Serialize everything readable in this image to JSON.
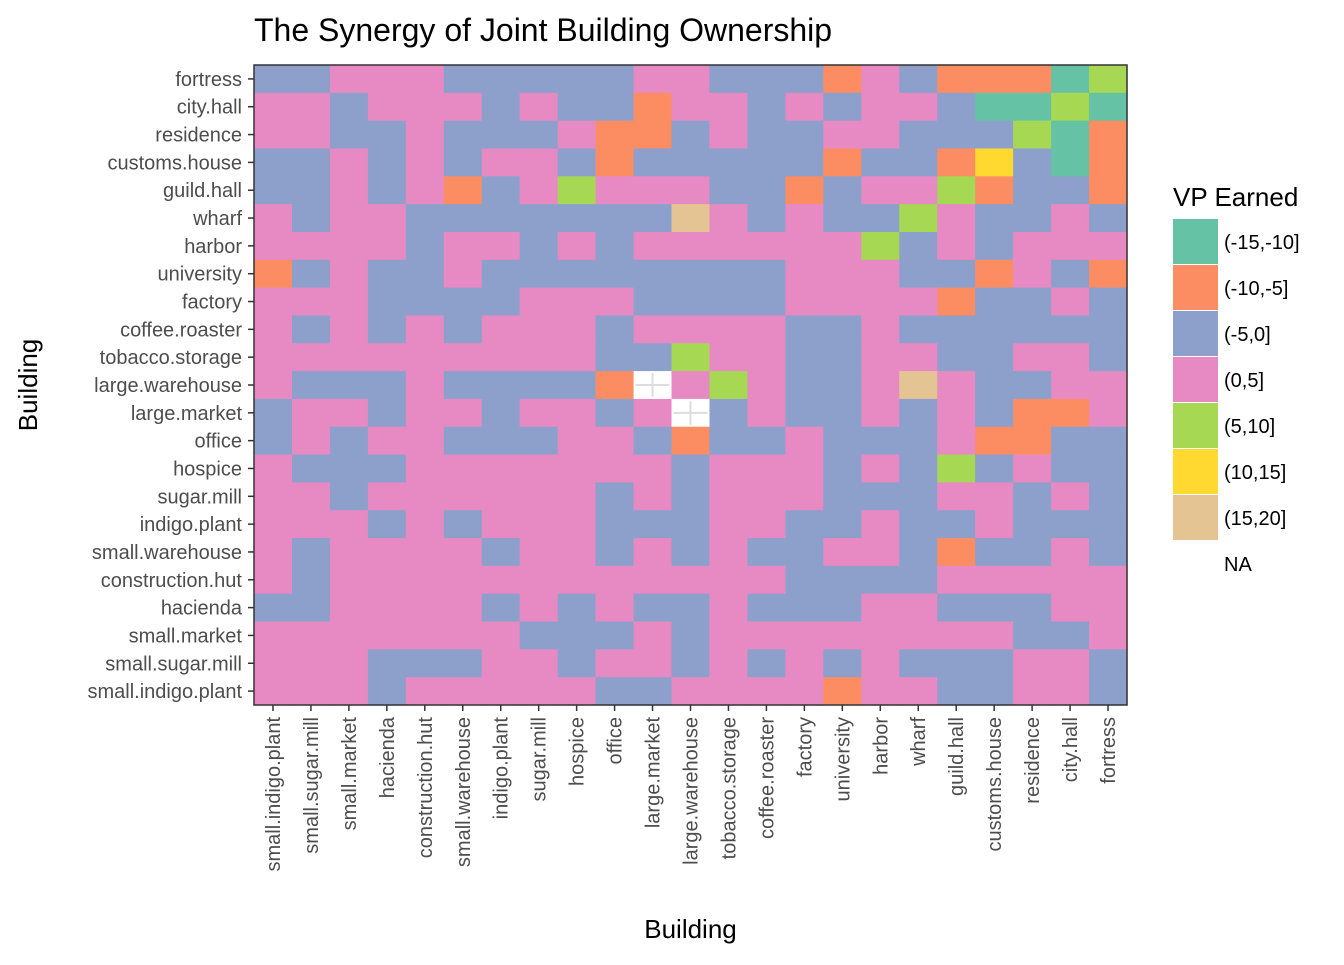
{
  "chart_data": {
    "type": "heatmap",
    "title": "The Synergy of Joint Building Ownership",
    "xlabel": "Building",
    "ylabel": "Building",
    "x_categories": [
      "small.indigo.plant",
      "small.sugar.mill",
      "small.market",
      "hacienda",
      "construction.hut",
      "small.warehouse",
      "indigo.plant",
      "sugar.mill",
      "hospice",
      "office",
      "large.market",
      "large.warehouse",
      "tobacco.storage",
      "coffee.roaster",
      "factory",
      "university",
      "harbor",
      "wharf",
      "guild.hall",
      "customs.house",
      "residence",
      "city.hall",
      "fortress"
    ],
    "y_categories": [
      "fortress",
      "city.hall",
      "residence",
      "customs.house",
      "guild.hall",
      "wharf",
      "harbor",
      "university",
      "factory",
      "coffee.roaster",
      "tobacco.storage",
      "large.warehouse",
      "large.market",
      "office",
      "hospice",
      "sugar.mill",
      "indigo.plant",
      "small.warehouse",
      "construction.hut",
      "hacienda",
      "small.market",
      "small.sugar.mill",
      "small.indigo.plant"
    ],
    "legend": {
      "title": "VP Earned",
      "position": "right",
      "labels": [
        "(-15,-10]",
        "(-10,-5]",
        "(-5,0]",
        "(0,5]",
        "(5,10]",
        "(10,15]",
        "(15,20]",
        "NA"
      ],
      "colors": [
        "#66C2A5",
        "#FC8D62",
        "#8DA0CB",
        "#E78AC3",
        "#A6D854",
        "#FFD92F",
        "#E5C494",
        "#FFFFFF"
      ]
    },
    "grid": false,
    "cells": [
      [
        "(-5,0]",
        "(-5,0]",
        "(0,5]",
        "(0,5]",
        "(0,5]",
        "(-5,0]",
        "(-5,0]",
        "(-5,0]",
        "(-5,0]",
        "(-5,0]",
        "(0,5]",
        "(0,5]",
        "(-5,0]",
        "(-5,0]",
        "(-5,0]",
        "(-10,-5]",
        "(0,5]",
        "(-5,0]",
        "(-10,-5]",
        "(-10,-5]",
        "(-10,-5]",
        "(-15,-10]",
        "(5,10]"
      ],
      [
        "(0,5]",
        "(0,5]",
        "(-5,0]",
        "(0,5]",
        "(0,5]",
        "(0,5]",
        "(-5,0]",
        "(0,5]",
        "(-5,0]",
        "(-5,0]",
        "(-10,-5]",
        "(0,5]",
        "(0,5]",
        "(-5,0]",
        "(0,5]",
        "(-5,0]",
        "(0,5]",
        "(0,5]",
        "(-5,0]",
        "(-15,-10]",
        "(-15,-10]",
        "(5,10]",
        "(-15,-10]"
      ],
      [
        "(0,5]",
        "(0,5]",
        "(-5,0]",
        "(-5,0]",
        "(0,5]",
        "(-5,0]",
        "(-5,0]",
        "(-5,0]",
        "(0,5]",
        "(-10,-5]",
        "(-10,-5]",
        "(-5,0]",
        "(0,5]",
        "(-5,0]",
        "(-5,0]",
        "(0,5]",
        "(0,5]",
        "(-5,0]",
        "(-5,0]",
        "(-5,0]",
        "(5,10]",
        "(-15,-10]",
        "(-10,-5]"
      ],
      [
        "(-5,0]",
        "(-5,0]",
        "(0,5]",
        "(-5,0]",
        "(0,5]",
        "(-5,0]",
        "(0,5]",
        "(0,5]",
        "(-5,0]",
        "(-10,-5]",
        "(-5,0]",
        "(-5,0]",
        "(-5,0]",
        "(-5,0]",
        "(-5,0]",
        "(-10,-5]",
        "(-5,0]",
        "(-5,0]",
        "(-10,-5]",
        "(10,15]",
        "(-5,0]",
        "(-15,-10]",
        "(-10,-5]"
      ],
      [
        "(-5,0]",
        "(-5,0]",
        "(0,5]",
        "(-5,0]",
        "(0,5]",
        "(-10,-5]",
        "(-5,0]",
        "(0,5]",
        "(5,10]",
        "(0,5]",
        "(0,5]",
        "(0,5]",
        "(-5,0]",
        "(-5,0]",
        "(-10,-5]",
        "(-5,0]",
        "(0,5]",
        "(0,5]",
        "(5,10]",
        "(-10,-5]",
        "(-5,0]",
        "(-5,0]",
        "(-10,-5]"
      ],
      [
        "(0,5]",
        "(-5,0]",
        "(0,5]",
        "(0,5]",
        "(-5,0]",
        "(-5,0]",
        "(-5,0]",
        "(-5,0]",
        "(-5,0]",
        "(-5,0]",
        "(-5,0]",
        "(15,20]",
        "(0,5]",
        "(-5,0]",
        "(0,5]",
        "(-5,0]",
        "(-5,0]",
        "(5,10]",
        "(0,5]",
        "(-5,0]",
        "(-5,0]",
        "(0,5]",
        "(-5,0]"
      ],
      [
        "(0,5]",
        "(0,5]",
        "(0,5]",
        "(0,5]",
        "(-5,0]",
        "(0,5]",
        "(0,5]",
        "(-5,0]",
        "(0,5]",
        "(-5,0]",
        "(0,5]",
        "(0,5]",
        "(0,5]",
        "(0,5]",
        "(0,5]",
        "(0,5]",
        "(5,10]",
        "(-5,0]",
        "(0,5]",
        "(-5,0]",
        "(0,5]",
        "(0,5]",
        "(0,5]"
      ],
      [
        "(-10,-5]",
        "(-5,0]",
        "(0,5]",
        "(-5,0]",
        "(-5,0]",
        "(0,5]",
        "(-5,0]",
        "(-5,0]",
        "(-5,0]",
        "(-5,0]",
        "(-5,0]",
        "(-5,0]",
        "(-5,0]",
        "(-5,0]",
        "(0,5]",
        "(0,5]",
        "(0,5]",
        "(-5,0]",
        "(-5,0]",
        "(-10,-5]",
        "(0,5]",
        "(-5,0]",
        "(-10,-5]"
      ],
      [
        "(0,5]",
        "(0,5]",
        "(0,5]",
        "(-5,0]",
        "(-5,0]",
        "(-5,0]",
        "(-5,0]",
        "(0,5]",
        "(0,5]",
        "(0,5]",
        "(-5,0]",
        "(-5,0]",
        "(-5,0]",
        "(-5,0]",
        "(0,5]",
        "(0,5]",
        "(0,5]",
        "(0,5]",
        "(-10,-5]",
        "(-5,0]",
        "(-5,0]",
        "(0,5]",
        "(-5,0]"
      ],
      [
        "(0,5]",
        "(-5,0]",
        "(0,5]",
        "(-5,0]",
        "(0,5]",
        "(-5,0]",
        "(0,5]",
        "(0,5]",
        "(0,5]",
        "(-5,0]",
        "(0,5]",
        "(0,5]",
        "(0,5]",
        "(0,5]",
        "(-5,0]",
        "(-5,0]",
        "(0,5]",
        "(-5,0]",
        "(-5,0]",
        "(-5,0]",
        "(-5,0]",
        "(-5,0]",
        "(-5,0]"
      ],
      [
        "(0,5]",
        "(0,5]",
        "(0,5]",
        "(0,5]",
        "(0,5]",
        "(0,5]",
        "(0,5]",
        "(0,5]",
        "(0,5]",
        "(-5,0]",
        "(-5,0]",
        "(5,10]",
        "(0,5]",
        "(0,5]",
        "(-5,0]",
        "(-5,0]",
        "(0,5]",
        "(0,5]",
        "(-5,0]",
        "(-5,0]",
        "(0,5]",
        "(0,5]",
        "(-5,0]"
      ],
      [
        "(0,5]",
        "(-5,0]",
        "(-5,0]",
        "(-5,0]",
        "(0,5]",
        "(-5,0]",
        "(-5,0]",
        "(-5,0]",
        "(-5,0]",
        "(-10,-5]",
        "NA",
        "(0,5]",
        "(5,10]",
        "(0,5]",
        "(-5,0]",
        "(-5,0]",
        "(0,5]",
        "(15,20]",
        "(0,5]",
        "(-5,0]",
        "(-5,0]",
        "(0,5]",
        "(0,5]"
      ],
      [
        "(-5,0]",
        "(0,5]",
        "(0,5]",
        "(-5,0]",
        "(0,5]",
        "(0,5]",
        "(-5,0]",
        "(0,5]",
        "(0,5]",
        "(-5,0]",
        "(0,5]",
        "NA",
        "(-5,0]",
        "(0,5]",
        "(-5,0]",
        "(-5,0]",
        "(0,5]",
        "(-5,0]",
        "(0,5]",
        "(-5,0]",
        "(-10,-5]",
        "(-10,-5]",
        "(0,5]"
      ],
      [
        "(-5,0]",
        "(0,5]",
        "(-5,0]",
        "(0,5]",
        "(0,5]",
        "(-5,0]",
        "(-5,0]",
        "(-5,0]",
        "(0,5]",
        "(0,5]",
        "(-5,0]",
        "(-10,-5]",
        "(-5,0]",
        "(-5,0]",
        "(0,5]",
        "(-5,0]",
        "(-5,0]",
        "(-5,0]",
        "(0,5]",
        "(-10,-5]",
        "(-10,-5]",
        "(-5,0]",
        "(-5,0]"
      ],
      [
        "(0,5]",
        "(-5,0]",
        "(-5,0]",
        "(-5,0]",
        "(0,5]",
        "(0,5]",
        "(0,5]",
        "(0,5]",
        "(0,5]",
        "(0,5]",
        "(0,5]",
        "(-5,0]",
        "(0,5]",
        "(0,5]",
        "(0,5]",
        "(-5,0]",
        "(0,5]",
        "(-5,0]",
        "(5,10]",
        "(-5,0]",
        "(0,5]",
        "(-5,0]",
        "(-5,0]"
      ],
      [
        "(0,5]",
        "(0,5]",
        "(-5,0]",
        "(0,5]",
        "(0,5]",
        "(0,5]",
        "(0,5]",
        "(0,5]",
        "(0,5]",
        "(-5,0]",
        "(0,5]",
        "(-5,0]",
        "(0,5]",
        "(0,5]",
        "(0,5]",
        "(-5,0]",
        "(-5,0]",
        "(-5,0]",
        "(0,5]",
        "(0,5]",
        "(-5,0]",
        "(0,5]",
        "(-5,0]"
      ],
      [
        "(0,5]",
        "(0,5]",
        "(0,5]",
        "(-5,0]",
        "(0,5]",
        "(-5,0]",
        "(0,5]",
        "(0,5]",
        "(0,5]",
        "(-5,0]",
        "(-5,0]",
        "(-5,0]",
        "(0,5]",
        "(0,5]",
        "(-5,0]",
        "(-5,0]",
        "(0,5]",
        "(-5,0]",
        "(-5,0]",
        "(0,5]",
        "(-5,0]",
        "(-5,0]",
        "(-5,0]"
      ],
      [
        "(0,5]",
        "(-5,0]",
        "(0,5]",
        "(0,5]",
        "(0,5]",
        "(0,5]",
        "(-5,0]",
        "(0,5]",
        "(0,5]",
        "(-5,0]",
        "(0,5]",
        "(-5,0]",
        "(0,5]",
        "(-5,0]",
        "(-5,0]",
        "(0,5]",
        "(0,5]",
        "(-5,0]",
        "(-10,-5]",
        "(-5,0]",
        "(-5,0]",
        "(0,5]",
        "(-5,0]"
      ],
      [
        "(0,5]",
        "(-5,0]",
        "(0,5]",
        "(0,5]",
        "(0,5]",
        "(0,5]",
        "(0,5]",
        "(0,5]",
        "(0,5]",
        "(0,5]",
        "(0,5]",
        "(0,5]",
        "(0,5]",
        "(0,5]",
        "(-5,0]",
        "(-5,0]",
        "(-5,0]",
        "(-5,0]",
        "(0,5]",
        "(0,5]",
        "(0,5]",
        "(0,5]",
        "(0,5]"
      ],
      [
        "(-5,0]",
        "(-5,0]",
        "(0,5]",
        "(0,5]",
        "(0,5]",
        "(0,5]",
        "(-5,0]",
        "(0,5]",
        "(-5,0]",
        "(0,5]",
        "(-5,0]",
        "(-5,0]",
        "(0,5]",
        "(-5,0]",
        "(-5,0]",
        "(-5,0]",
        "(0,5]",
        "(0,5]",
        "(-5,0]",
        "(-5,0]",
        "(-5,0]",
        "(0,5]",
        "(0,5]"
      ],
      [
        "(0,5]",
        "(0,5]",
        "(0,5]",
        "(0,5]",
        "(0,5]",
        "(0,5]",
        "(0,5]",
        "(-5,0]",
        "(-5,0]",
        "(-5,0]",
        "(0,5]",
        "(-5,0]",
        "(0,5]",
        "(0,5]",
        "(0,5]",
        "(0,5]",
        "(0,5]",
        "(0,5]",
        "(0,5]",
        "(0,5]",
        "(-5,0]",
        "(-5,0]",
        "(0,5]"
      ],
      [
        "(0,5]",
        "(0,5]",
        "(0,5]",
        "(-5,0]",
        "(-5,0]",
        "(-5,0]",
        "(0,5]",
        "(0,5]",
        "(-5,0]",
        "(0,5]",
        "(0,5]",
        "(-5,0]",
        "(0,5]",
        "(-5,0]",
        "(0,5]",
        "(-5,0]",
        "(0,5]",
        "(-5,0]",
        "(-5,0]",
        "(-5,0]",
        "(0,5]",
        "(0,5]",
        "(-5,0]"
      ],
      [
        "(0,5]",
        "(0,5]",
        "(0,5]",
        "(-5,0]",
        "(0,5]",
        "(0,5]",
        "(0,5]",
        "(0,5]",
        "(0,5]",
        "(-5,0]",
        "(-5,0]",
        "(0,5]",
        "(0,5]",
        "(0,5]",
        "(0,5]",
        "(-10,-5]",
        "(0,5]",
        "(0,5]",
        "(-5,0]",
        "(-5,0]",
        "(0,5]",
        "(0,5]",
        "(-5,0]"
      ]
    ]
  }
}
